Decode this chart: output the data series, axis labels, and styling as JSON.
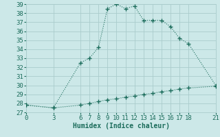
{
  "xlabel": "Humidex (Indice chaleur)",
  "bg_color": "#cce8e8",
  "line_color": "#1a6b5a",
  "grid_color": "#aacccc",
  "x_upper": [
    0,
    3,
    6,
    7,
    8,
    9,
    10,
    11,
    12,
    13,
    14,
    15,
    16,
    17,
    18,
    21
  ],
  "y_upper": [
    27.8,
    27.5,
    32.5,
    33.0,
    34.2,
    38.5,
    39.0,
    38.5,
    38.8,
    37.2,
    37.2,
    37.2,
    36.5,
    35.2,
    34.6,
    30.0
  ],
  "x_lower": [
    0,
    3,
    6,
    7,
    8,
    9,
    10,
    11,
    12,
    13,
    14,
    15,
    16,
    17,
    18,
    21
  ],
  "y_lower": [
    27.8,
    27.5,
    27.8,
    28.0,
    28.2,
    28.4,
    28.5,
    28.7,
    28.8,
    29.0,
    29.1,
    29.3,
    29.4,
    29.6,
    29.7,
    29.9
  ],
  "xlim": [
    0,
    21
  ],
  "ylim": [
    27,
    39
  ],
  "xticks": [
    0,
    3,
    6,
    7,
    8,
    9,
    10,
    11,
    12,
    13,
    14,
    15,
    16,
    17,
    18,
    21
  ],
  "yticks": [
    27,
    28,
    29,
    30,
    31,
    32,
    33,
    34,
    35,
    36,
    37,
    38,
    39
  ],
  "fontsize_label": 7,
  "fontsize_tick": 6.5
}
